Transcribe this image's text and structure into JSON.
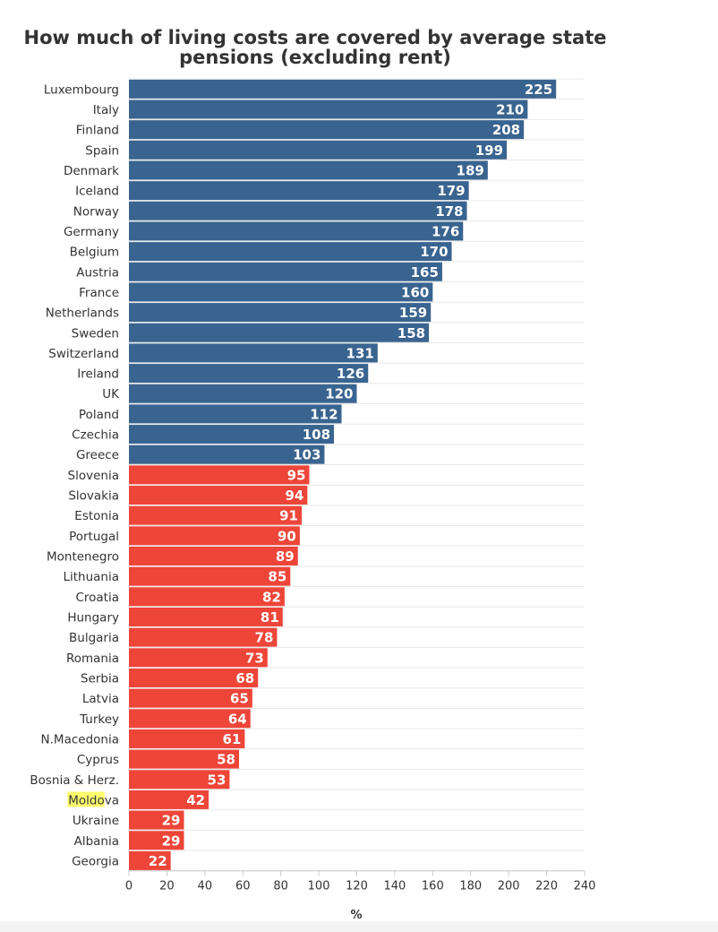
{
  "chart_data": {
    "type": "bar",
    "orientation": "horizontal",
    "title_lines": [
      "How much of living costs are covered by average state",
      "pensions (excluding rent)"
    ],
    "xlabel": "%",
    "ylabel": "",
    "xlim": [
      0,
      240
    ],
    "x_ticks": [
      "0",
      "20",
      "40",
      "60",
      "80",
      "100",
      "120",
      "140",
      "160",
      "180",
      "200",
      "220",
      "240"
    ],
    "grid": true,
    "threshold": 100,
    "colors": {
      "above_threshold": "#3a6490",
      "below_threshold": "#ee4539",
      "highlight": "#ffff6e"
    },
    "highlighted_category": "Moldova",
    "highlight_chars": 5,
    "categories": [
      "Luxembourg",
      "Italy",
      "Finland",
      "Spain",
      "Denmark",
      "Iceland",
      "Norway",
      "Germany",
      "Belgium",
      "Austria",
      "France",
      "Netherlands",
      "Sweden",
      "Switzerland",
      "Ireland",
      "UK",
      "Poland",
      "Czechia",
      "Greece",
      "Slovenia",
      "Slovakia",
      "Estonia",
      "Portugal",
      "Montenegro",
      "Lithuania",
      "Croatia",
      "Hungary",
      "Bulgaria",
      "Romania",
      "Serbia",
      "Latvia",
      "Turkey",
      "N.Macedonia",
      "Cyprus",
      "Bosnia & Herz.",
      "Moldova",
      "Ukraine",
      "Albania",
      "Georgia"
    ],
    "values": [
      225,
      210,
      208,
      199,
      189,
      179,
      178,
      176,
      170,
      165,
      160,
      159,
      158,
      131,
      126,
      120,
      112,
      108,
      103,
      95,
      94,
      91,
      90,
      89,
      85,
      82,
      81,
      78,
      73,
      68,
      65,
      64,
      61,
      58,
      53,
      42,
      29,
      29,
      22
    ],
    "value_labels": [
      "225",
      "210",
      "208",
      "199",
      "189",
      "179",
      "178",
      "176",
      "170",
      "165",
      "160",
      "159",
      "158",
      "131",
      "126",
      "120",
      "112",
      "108",
      "103",
      "95",
      "94",
      "91",
      "90",
      "89",
      "85",
      "82",
      "81",
      "78",
      "73",
      "68",
      "65",
      "64",
      "61",
      "58",
      "53",
      "42",
      "29",
      "29",
      "22"
    ]
  }
}
